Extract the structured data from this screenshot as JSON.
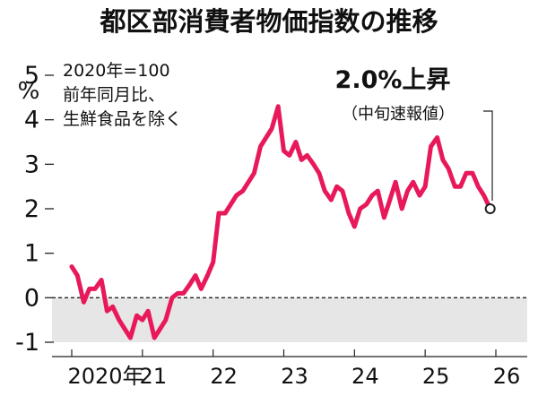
{
  "chart_data": {
    "type": "line",
    "title": "都区部消費者物価指数の推移",
    "unit": "%",
    "notes": [
      "2020年=100",
      "前年同月比、",
      "生鮮食品を除く"
    ],
    "annotation": {
      "headline": "2.0%上昇",
      "sub": "（中旬速報値）"
    },
    "xlabels": [
      "2020年",
      "21",
      "22",
      "23",
      "24",
      "25",
      "26"
    ],
    "yticks": [
      -1,
      0,
      1,
      2,
      3,
      4,
      5
    ],
    "ylim": [
      -1,
      5
    ],
    "xlim": [
      2020,
      2026
    ],
    "series": [
      {
        "color": "#e8195a",
        "x": [
          2020.0,
          2020.08,
          2020.17,
          2020.25,
          2020.33,
          2020.42,
          2020.5,
          2020.58,
          2020.67,
          2020.75,
          2020.83,
          2020.92,
          2021.0,
          2021.08,
          2021.17,
          2021.25,
          2021.33,
          2021.42,
          2021.5,
          2021.58,
          2021.67,
          2021.75,
          2021.83,
          2021.92,
          2022.0,
          2022.08,
          2022.17,
          2022.25,
          2022.33,
          2022.42,
          2022.5,
          2022.58,
          2022.67,
          2022.75,
          2022.83,
          2022.92,
          2023.0,
          2023.08,
          2023.17,
          2023.25,
          2023.33,
          2023.42,
          2023.5,
          2023.58,
          2023.67,
          2023.75,
          2023.83,
          2023.92,
          2024.0,
          2024.08,
          2024.17,
          2024.25,
          2024.33,
          2024.42,
          2024.5,
          2024.58,
          2024.67,
          2024.75,
          2024.83,
          2024.92,
          2025.0,
          2025.08,
          2025.17,
          2025.25,
          2025.33,
          2025.42,
          2025.5,
          2025.58,
          2025.67,
          2025.75,
          2025.83,
          2025.92
        ],
        "y": [
          0.7,
          0.5,
          -0.1,
          0.2,
          0.2,
          0.4,
          -0.3,
          -0.2,
          -0.5,
          -0.7,
          -0.9,
          -0.4,
          -0.5,
          -0.3,
          -0.9,
          -0.7,
          -0.5,
          0.0,
          0.1,
          0.1,
          0.3,
          0.5,
          0.2,
          0.5,
          0.8,
          1.9,
          1.9,
          2.1,
          2.3,
          2.4,
          2.6,
          2.8,
          3.4,
          3.6,
          3.8,
          4.3,
          3.3,
          3.2,
          3.5,
          3.1,
          3.2,
          3.0,
          2.8,
          2.4,
          2.2,
          2.5,
          2.4,
          1.9,
          1.6,
          2.0,
          2.1,
          2.3,
          2.4,
          1.8,
          2.2,
          2.6,
          2.0,
          2.4,
          2.6,
          2.3,
          2.5,
          3.4,
          3.6,
          3.1,
          2.9,
          2.5,
          2.5,
          2.8,
          2.8,
          2.5,
          2.3,
          2.0
        ]
      }
    ]
  }
}
